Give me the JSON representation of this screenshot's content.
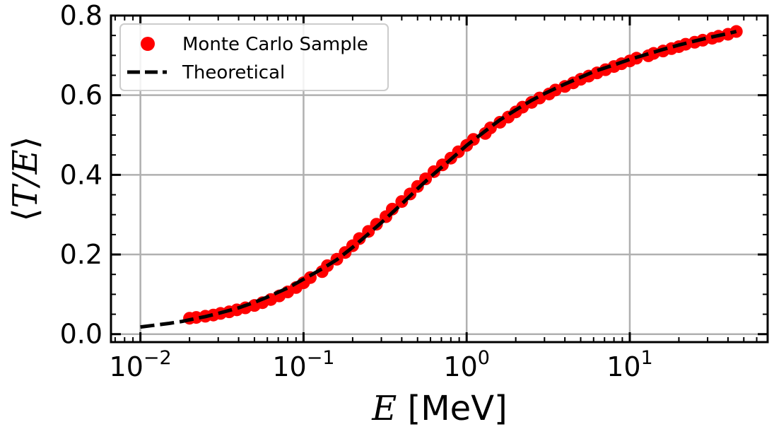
{
  "chart_data": {
    "type": "scatter",
    "xscale": "log",
    "xlim": [
      0.0066,
      70
    ],
    "ylim": [
      -0.02,
      0.8
    ],
    "grid": true,
    "legend_position": "upper-left",
    "x_ticks": [
      {
        "value": 0.01,
        "base": "10",
        "exp": "−2"
      },
      {
        "value": 0.1,
        "base": "10",
        "exp": "−1"
      },
      {
        "value": 1,
        "base": "10",
        "exp": "0"
      },
      {
        "value": 10,
        "base": "10",
        "exp": "1"
      }
    ],
    "y_ticks": [
      {
        "value": 0.0,
        "label": "0.0"
      },
      {
        "value": 0.2,
        "label": "0.2"
      },
      {
        "value": 0.4,
        "label": "0.4"
      },
      {
        "value": 0.6,
        "label": "0.6"
      },
      {
        "value": 0.8,
        "label": "0.8"
      }
    ],
    "xlabel": {
      "symbol": "E",
      "unit": " [MeV]"
    },
    "ylabel": {
      "left": "⟨",
      "symbol": "T/E",
      "right": "⟩"
    },
    "colors": {
      "scatter": "#ff0000",
      "line": "#000000",
      "grid": "#b0b0b0"
    },
    "series": [
      {
        "name": "Monte Carlo Sample",
        "kind": "scatter",
        "x": [
          0.02,
          0.022,
          0.025,
          0.028,
          0.031,
          0.035,
          0.039,
          0.044,
          0.05,
          0.056,
          0.063,
          0.071,
          0.08,
          0.09,
          0.1,
          0.11,
          0.13,
          0.14,
          0.16,
          0.18,
          0.2,
          0.22,
          0.25,
          0.28,
          0.32,
          0.35,
          0.4,
          0.45,
          0.5,
          0.56,
          0.63,
          0.71,
          0.8,
          0.89,
          1.0,
          1.1,
          1.3,
          1.4,
          1.6,
          1.8,
          2.0,
          2.2,
          2.5,
          2.8,
          3.2,
          3.5,
          4.0,
          4.5,
          5.0,
          5.6,
          6.3,
          7.1,
          8.0,
          8.9,
          10,
          11,
          13,
          14,
          16,
          18,
          20,
          22,
          25,
          28,
          32,
          35,
          40,
          45
        ],
        "y": [
          0.04,
          0.042,
          0.045,
          0.048,
          0.052,
          0.056,
          0.061,
          0.066,
          0.072,
          0.079,
          0.087,
          0.096,
          0.106,
          0.117,
          0.129,
          0.142,
          0.157,
          0.172,
          0.188,
          0.205,
          0.222,
          0.24,
          0.258,
          0.276,
          0.295,
          0.314,
          0.333,
          0.352,
          0.371,
          0.39,
          0.408,
          0.425,
          0.442,
          0.458,
          0.474,
          0.489,
          0.504,
          0.518,
          0.532,
          0.545,
          0.558,
          0.57,
          0.582,
          0.593,
          0.603,
          0.613,
          0.622,
          0.631,
          0.64,
          0.648,
          0.656,
          0.664,
          0.672,
          0.679,
          0.686,
          0.693,
          0.699,
          0.705,
          0.711,
          0.717,
          0.722,
          0.728,
          0.733,
          0.738,
          0.743,
          0.748,
          0.753,
          0.76
        ]
      },
      {
        "name": "Theoretical",
        "kind": "line",
        "style": "dashed",
        "x": [
          0.01,
          0.012,
          0.015,
          0.018,
          0.02,
          0.025,
          0.03,
          0.04,
          0.05,
          0.06,
          0.08,
          0.1,
          0.13,
          0.16,
          0.2,
          0.25,
          0.3,
          0.4,
          0.5,
          0.6,
          0.8,
          1.0,
          1.3,
          1.6,
          2.0,
          2.5,
          3.0,
          4.0,
          5.0,
          6.0,
          8.0,
          10,
          13,
          16,
          20,
          25,
          30,
          40,
          45
        ],
        "y": [
          0.018,
          0.022,
          0.027,
          0.032,
          0.036,
          0.044,
          0.052,
          0.066,
          0.08,
          0.093,
          0.116,
          0.138,
          0.164,
          0.187,
          0.218,
          0.252,
          0.28,
          0.327,
          0.365,
          0.395,
          0.439,
          0.474,
          0.51,
          0.538,
          0.563,
          0.587,
          0.604,
          0.628,
          0.645,
          0.659,
          0.676,
          0.69,
          0.704,
          0.715,
          0.726,
          0.736,
          0.744,
          0.755,
          0.76
        ]
      }
    ]
  }
}
